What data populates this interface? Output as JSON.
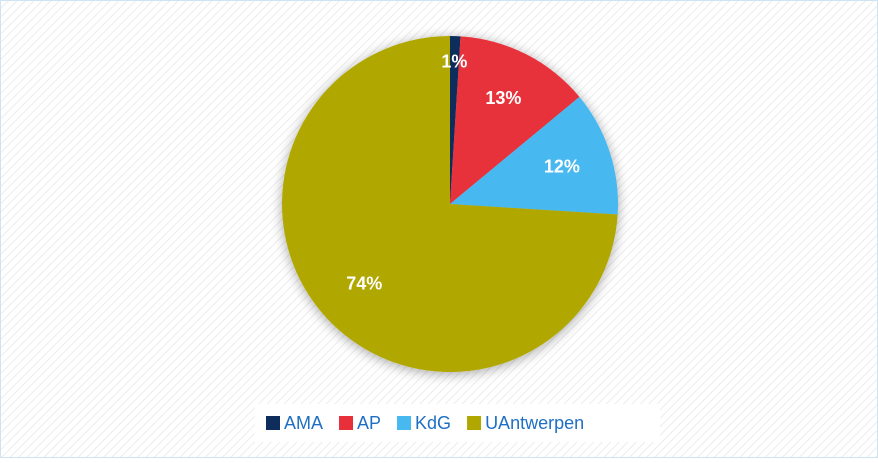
{
  "chart_data": {
    "type": "pie",
    "categories": [
      "AMA",
      "AP",
      "KdG",
      "UAntwerpen"
    ],
    "values": [
      1,
      13,
      12,
      74
    ],
    "value_labels": [
      "1%",
      "13%",
      "12%",
      "74%"
    ],
    "colors": [
      "#0f2d5c",
      "#e8303b",
      "#47b8f0",
      "#b0a800"
    ],
    "legend": "bottom"
  }
}
